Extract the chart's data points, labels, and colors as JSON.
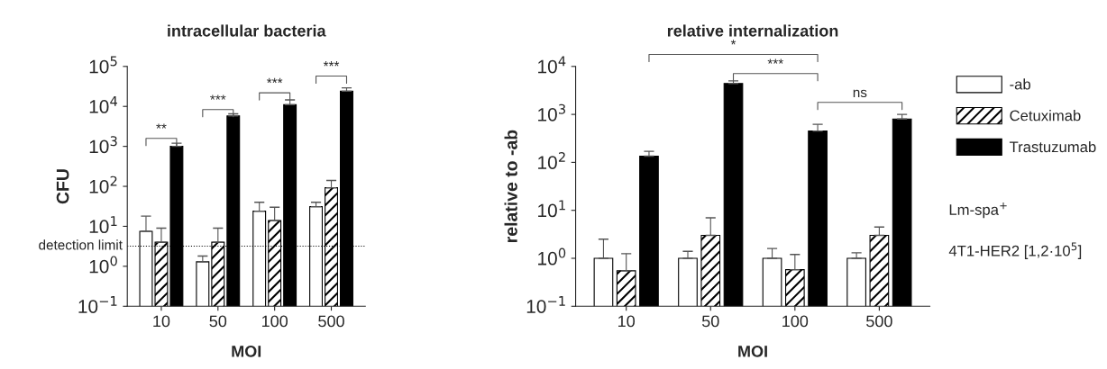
{
  "chart_data": [
    {
      "type": "bar",
      "title": "intracellular bacteria",
      "xlabel": "MOI",
      "ylabel": "CFU",
      "categories": [
        "10",
        "50",
        "100",
        "500"
      ],
      "log": "y",
      "ylim": [
        0.1,
        100000
      ],
      "yticks": [
        {
          "value": 0.1,
          "label": "10$^{−1}$"
        },
        {
          "value": 1,
          "label": "10$^{0}$"
        },
        {
          "value": 10,
          "label": "10$^{1}$"
        },
        {
          "value": 100,
          "label": "10$^{2}$"
        },
        {
          "value": 1000,
          "label": "10$^{3}$"
        },
        {
          "value": 10000,
          "label": "10$^{4}$"
        },
        {
          "value": 100000,
          "label": "10$^{5}$"
        }
      ],
      "series": [
        {
          "name": "-ab",
          "color": "#ffffff",
          "values": [
            7.5,
            1.3,
            24,
            31
          ],
          "errors": [
            [
              7.5,
              18
            ],
            [
              1.3,
              1.8
            ],
            [
              24,
              40
            ],
            [
              31,
              40
            ]
          ]
        },
        {
          "name": "Cetuximab",
          "color": "#000000",
          "values": [
            4,
            4,
            14,
            92
          ],
          "errors": [
            [
              4,
              9
            ],
            [
              4,
              9
            ],
            [
              14,
              30
            ],
            [
              92,
              140
            ]
          ]
        },
        {
          "name": "Trastuzumab",
          "color": "#000000",
          "values": [
            1000,
            5800,
            11000,
            24000
          ],
          "errors": [
            [
              1000,
              1200
            ],
            [
              5800,
              6500
            ],
            [
              11000,
              14500
            ],
            [
              24000,
              29000
            ]
          ]
        }
      ],
      "ref_lines": [
        {
          "axis": "y",
          "value": 3.2,
          "label": "detection limit",
          "line_style": "dotted",
          "color": "#000000"
        }
      ],
      "annotations": [
        "**",
        "***",
        "***",
        "***",
        "Lm-spa$^{+}$",
        "4T1-HER2 [1,2·10$^{5}$]"
      ],
      "legend": "right",
      "grid": false
    },
    {
      "type": "bar",
      "title": "relative internalization",
      "xlabel": "MOI",
      "ylabel": "relative to -ab",
      "categories": [
        "10",
        "50",
        "100",
        "500"
      ],
      "log": "y",
      "ylim": [
        0.1,
        10000
      ],
      "yticks": [
        {
          "value": 0.1,
          "label": "10$^{−1}$"
        },
        {
          "value": 1,
          "label": "10$^{0}$"
        },
        {
          "value": 10,
          "label": "10$^{1}$"
        },
        {
          "value": 100,
          "label": "10$^{2}$"
        },
        {
          "value": 1000,
          "label": "10$^{3}$"
        },
        {
          "value": 10000,
          "label": "10$^{4}$"
        }
      ],
      "series": [
        {
          "color": "#ffffff",
          "values": [
            1,
            1,
            1,
            1
          ],
          "errors": [
            [
              1,
              2.5
            ],
            [
              1,
              1.4
            ],
            [
              1,
              1.6
            ],
            [
              1,
              1.3
            ]
          ]
        },
        {
          "color": "#000000",
          "values": [
            0.55,
            3,
            0.58,
            3
          ],
          "errors": [
            [
              0.55,
              1.25
            ],
            [
              3,
              7
            ],
            [
              0.58,
              1.2
            ],
            [
              3,
              4.5
            ]
          ]
        },
        {
          "color": "#000000",
          "values": [
            135,
            4400,
            450,
            800
          ],
          "errors": [
            [
              135,
              170
            ],
            [
              4400,
              5000
            ],
            [
              450,
              620
            ],
            [
              800,
              1000
            ]
          ]
        }
      ],
      "annotations": [
        "*",
        "***",
        "ns"
      ],
      "grid": false
    }
  ]
}
